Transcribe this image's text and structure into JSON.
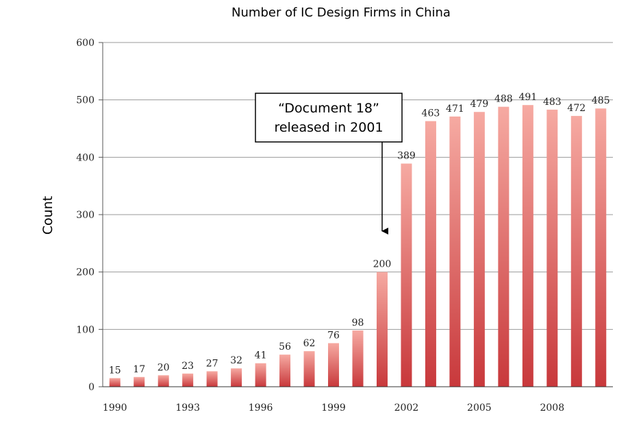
{
  "chart_data": {
    "type": "bar",
    "title": "Number of IC Design Firms in China",
    "xlabel": "",
    "ylabel": "Count",
    "ylim": [
      0,
      600
    ],
    "yticks": [
      0,
      100,
      200,
      300,
      400,
      500,
      600
    ],
    "x_tick_labels": [
      "1990",
      "1993",
      "1996",
      "1999",
      "2002",
      "2005",
      "2008"
    ],
    "categories": [
      "1990",
      "1991",
      "1992",
      "1993",
      "1994",
      "1995",
      "1996",
      "1997",
      "1998",
      "1999",
      "2000",
      "2001",
      "2002",
      "2003",
      "2004",
      "2005",
      "2006",
      "2007",
      "2008",
      "2009",
      "2010"
    ],
    "values": [
      15,
      17,
      20,
      23,
      27,
      32,
      41,
      56,
      62,
      76,
      98,
      200,
      389,
      463,
      471,
      479,
      488,
      491,
      483,
      472,
      485
    ],
    "grid": true,
    "bar_gradient": {
      "top": "#f6aaa2",
      "bottom": "#c8383b"
    },
    "annotation": {
      "lines": [
        "“Document 18”",
        "released in 2001"
      ],
      "points_to": "2001"
    }
  }
}
